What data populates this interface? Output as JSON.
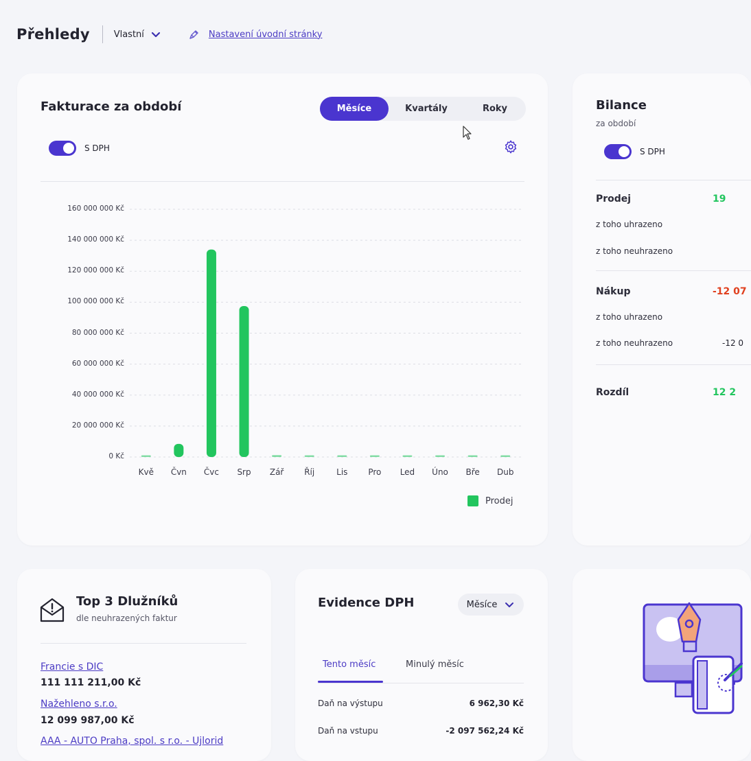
{
  "header": {
    "title": "Přehledy",
    "view_label": "Vlastní",
    "settings_link": "Nastavení úvodní stránky"
  },
  "fakturace": {
    "title": "Fakturace za období",
    "periods": [
      "Měsíce",
      "Kvartály",
      "Roky"
    ],
    "active_period": "Měsíce",
    "toggle_label": "S DPH",
    "toggle_on": true
  },
  "chart_data": {
    "type": "bar",
    "categories": [
      "Kvě",
      "Čvn",
      "Čvc",
      "Srp",
      "Zář",
      "Říj",
      "Lis",
      "Pro",
      "Led",
      "Úno",
      "Bře",
      "Dub"
    ],
    "series": [
      {
        "name": "Prodej",
        "color": "#22c55e",
        "values": [
          500000,
          8500000,
          134000000,
          97500000,
          1200000,
          300000,
          300000,
          300000,
          300000,
          300000,
          300000,
          300000
        ]
      }
    ],
    "yticks": [
      "160 000 000 Kč",
      "140 000 000 Kč",
      "120 000 000 Kč",
      "100 000 000 Kč",
      "80 000 000 Kč",
      "60 000 000 Kč",
      "40 000 000 Kč",
      "20 000 000 Kč",
      "0 Kč"
    ],
    "ylim": [
      0,
      160000000
    ],
    "grid": true,
    "legend": "bottom-right"
  },
  "bilance": {
    "title": "Bilance",
    "subtitle": "za období",
    "toggle_label": "S DPH",
    "rows": [
      {
        "label": "Prodej",
        "value": "19",
        "major": true,
        "color": "#22c55e"
      },
      {
        "label": "z toho uhrazeno",
        "value": "",
        "major": false,
        "color": "#23232f"
      },
      {
        "label": "z toho neuhrazeno",
        "value": "",
        "major": false,
        "color": "#23232f"
      },
      {
        "label": "Nákup",
        "value": "-12 07",
        "major": true,
        "color": "#e0401f"
      },
      {
        "label": "z toho uhrazeno",
        "value": "",
        "major": false,
        "color": "#23232f"
      },
      {
        "label": "z toho neuhrazeno",
        "value": "-12 0",
        "major": false,
        "color": "#23232f"
      },
      {
        "label": "Rozdíl",
        "value": "12 2",
        "major": true,
        "color": "#22c55e"
      }
    ]
  },
  "top_debtors": {
    "title": "Top 3 Dlužníků",
    "subtitle": "dle neuhrazených faktur",
    "items": [
      {
        "name": "Francie s DIC",
        "amount": "111 111 211,00 Kč"
      },
      {
        "name": "Nažehleno s.r.o.",
        "amount": "12 099 987,00 Kč"
      },
      {
        "name": "AAA - AUTO Praha, spol. s r.o. - Ujlorid",
        "amount": ""
      }
    ]
  },
  "evidence_dph": {
    "title": "Evidence DPH",
    "select_value": "Měsíce",
    "tabs": [
      "Tento měsíc",
      "Minulý měsíc"
    ],
    "rows": [
      {
        "label": "Daň na výstupu",
        "value": "6 962,30 Kč"
      },
      {
        "label": "Daň na vstupu",
        "value": "-2 097 562,24 Kč"
      }
    ]
  },
  "icons": [
    "chevron-down-icon",
    "pen-icon",
    "gear-icon",
    "envelope-alert-icon",
    "cursor-icon"
  ]
}
